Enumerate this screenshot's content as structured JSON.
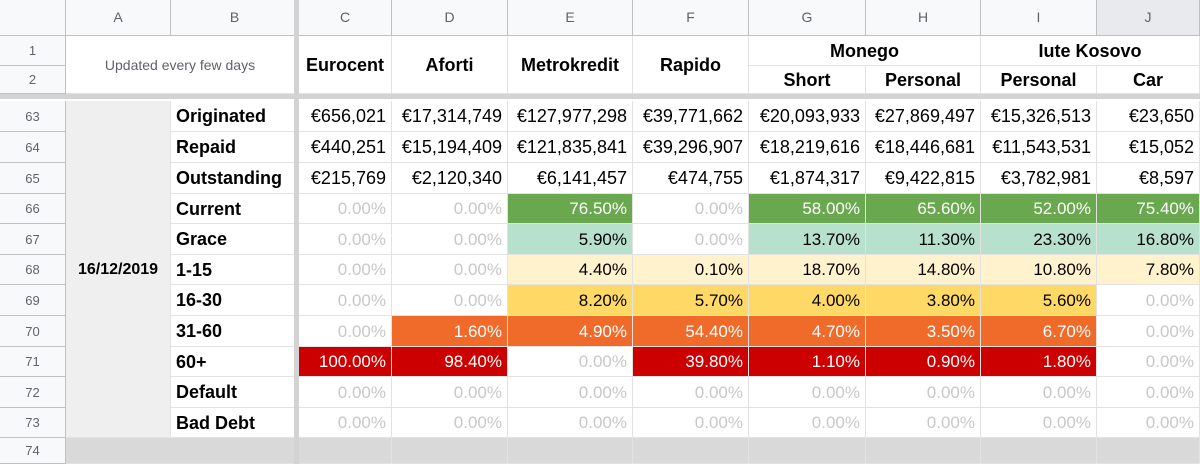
{
  "columns": [
    "A",
    "B",
    "C",
    "D",
    "E",
    "F",
    "G",
    "H",
    "I",
    "J"
  ],
  "row_numbers": [
    "1",
    "2",
    "63",
    "64",
    "65",
    "66",
    "67",
    "68",
    "69",
    "70",
    "71",
    "72",
    "73",
    "74"
  ],
  "header": {
    "note": "Updated every few days",
    "lenders": [
      "Eurocent",
      "Aforti",
      "Metrokredit",
      "Rapido"
    ],
    "groups": [
      {
        "name": "Monego",
        "subs": [
          "Short",
          "Personal"
        ]
      },
      {
        "name": "Iute Kosovo",
        "subs": [
          "Personal",
          "Car"
        ]
      }
    ]
  },
  "date": "16/12/2019",
  "colors": {
    "dark_green": "#6aa84f",
    "light_green": "#b7e1cd",
    "light_yellow": "#fff2cc",
    "yellow": "#ffd966",
    "orange": "#f06a2a",
    "red": "#cc0000"
  },
  "rows": [
    {
      "label": "Originated",
      "values": [
        "€656,021",
        "€17,314,749",
        "€127,977,298",
        "€39,771,662",
        "€20,093,933",
        "€27,869,497",
        "€15,326,513",
        "€23,650"
      ]
    },
    {
      "label": "Repaid",
      "values": [
        "€440,251",
        "€15,194,409",
        "€121,835,841",
        "€39,296,907",
        "€18,219,616",
        "€18,446,681",
        "€11,543,531",
        "€15,052"
      ]
    },
    {
      "label": "Outstanding",
      "values": [
        "€215,769",
        "€2,120,340",
        "€6,141,457",
        "€474,755",
        "€1,874,317",
        "€9,422,815",
        "€3,782,981",
        "€8,597"
      ]
    },
    {
      "label": "Current",
      "values": [
        "0.00%",
        "0.00%",
        "76.50%",
        "0.00%",
        "58.00%",
        "65.60%",
        "52.00%",
        "75.40%"
      ],
      "fill": [
        "",
        "",
        "dark_green",
        "",
        "dark_green",
        "dark_green",
        "dark_green",
        "dark_green"
      ]
    },
    {
      "label": "Grace",
      "values": [
        "0.00%",
        "0.00%",
        "5.90%",
        "0.00%",
        "13.70%",
        "11.30%",
        "23.30%",
        "16.80%"
      ],
      "fill": [
        "",
        "",
        "light_green",
        "",
        "light_green",
        "light_green",
        "light_green",
        "light_green"
      ]
    },
    {
      "label": "1-15",
      "values": [
        "0.00%",
        "0.00%",
        "4.40%",
        "0.10%",
        "18.70%",
        "14.80%",
        "10.80%",
        "7.80%"
      ],
      "fill": [
        "",
        "",
        "light_yellow",
        "light_yellow",
        "light_yellow",
        "light_yellow",
        "light_yellow",
        "light_yellow"
      ]
    },
    {
      "label": "16-30",
      "values": [
        "0.00%",
        "0.00%",
        "8.20%",
        "5.70%",
        "4.00%",
        "3.80%",
        "5.60%",
        "0.00%"
      ],
      "fill": [
        "",
        "",
        "yellow",
        "yellow",
        "yellow",
        "yellow",
        "yellow",
        ""
      ]
    },
    {
      "label": "31-60",
      "values": [
        "0.00%",
        "1.60%",
        "4.90%",
        "54.40%",
        "4.70%",
        "3.50%",
        "6.70%",
        "0.00%"
      ],
      "fill": [
        "",
        "orange",
        "orange",
        "orange",
        "orange",
        "orange",
        "orange",
        ""
      ]
    },
    {
      "label": "60+",
      "values": [
        "100.00%",
        "98.40%",
        "0.00%",
        "39.80%",
        "1.10%",
        "0.90%",
        "1.80%",
        "0.00%"
      ],
      "fill": [
        "red",
        "red",
        "",
        "red",
        "red",
        "red",
        "red",
        ""
      ]
    },
    {
      "label": "Default",
      "values": [
        "0.00%",
        "0.00%",
        "0.00%",
        "0.00%",
        "0.00%",
        "0.00%",
        "0.00%",
        "0.00%"
      ]
    },
    {
      "label": "Bad Debt",
      "values": [
        "0.00%",
        "0.00%",
        "0.00%",
        "0.00%",
        "0.00%",
        "0.00%",
        "0.00%",
        "0.00%"
      ]
    }
  ]
}
